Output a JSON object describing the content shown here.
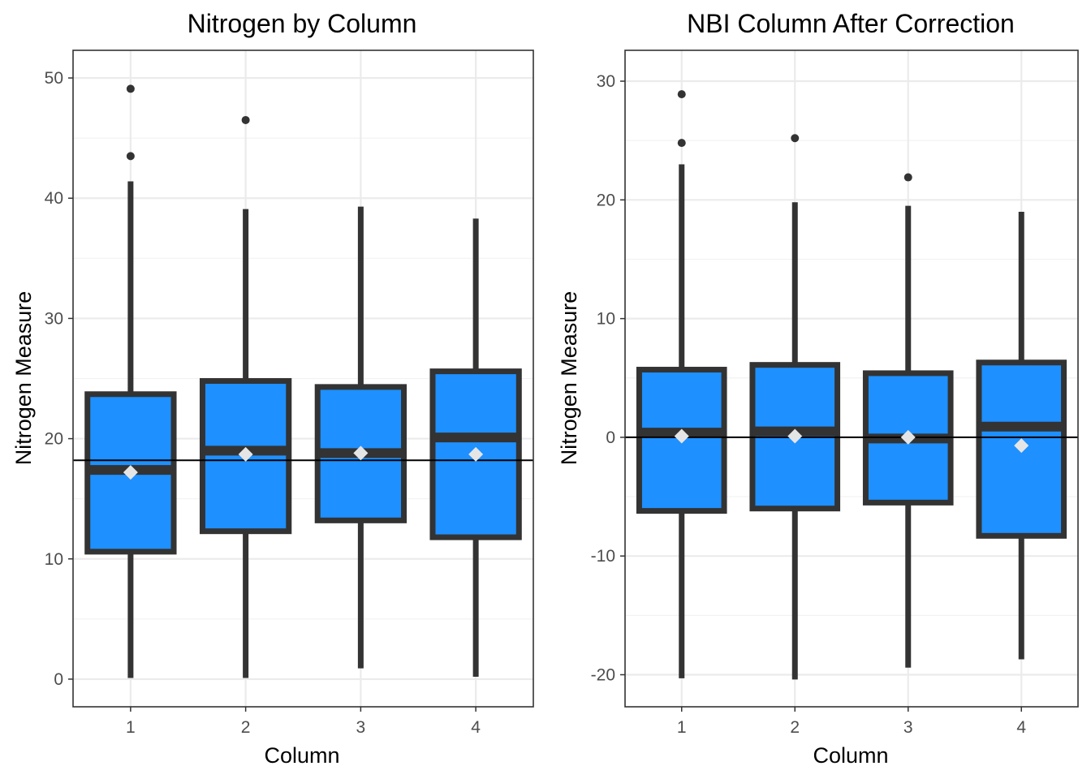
{
  "chart_data": [
    {
      "type": "boxplot",
      "title": "Nitrogen by Column",
      "xlabel": "Column",
      "ylabel": "Nitrogen Measure",
      "categories": [
        "1",
        "2",
        "3",
        "4"
      ],
      "ylim": [
        -2.3,
        52.3
      ],
      "yticks": [
        0,
        10,
        20,
        30,
        40,
        50
      ],
      "grid": true,
      "reference_line": 18.2,
      "colors": {
        "box_fill": "#1e90ff",
        "box_stroke": "#333333",
        "mean_marker": "#e5e5e5",
        "grid": "#ebebeb"
      },
      "boxes": [
        {
          "category": "1",
          "min": 0.1,
          "q1": 10.6,
          "median": 17.4,
          "q3": 23.7,
          "max": 41.4,
          "mean": 17.2,
          "outliers": [
            43.5,
            49.1
          ]
        },
        {
          "category": "2",
          "min": 0.1,
          "q1": 12.3,
          "median": 19.0,
          "q3": 24.8,
          "max": 39.1,
          "mean": 18.7,
          "outliers": [
            46.5
          ]
        },
        {
          "category": "3",
          "min": 0.9,
          "q1": 13.2,
          "median": 18.8,
          "q3": 24.3,
          "max": 39.3,
          "mean": 18.8,
          "outliers": []
        },
        {
          "category": "4",
          "min": 0.2,
          "q1": 11.8,
          "median": 20.1,
          "q3": 25.6,
          "max": 38.3,
          "mean": 18.7,
          "outliers": []
        }
      ]
    },
    {
      "type": "boxplot",
      "title": "NBI Column After Correction",
      "xlabel": "Column",
      "ylabel": "Nitrogen Measure",
      "categories": [
        "1",
        "2",
        "3",
        "4"
      ],
      "ylim": [
        -22.7,
        32.6
      ],
      "yticks": [
        -20,
        -10,
        0,
        10,
        20,
        30
      ],
      "grid": true,
      "reference_line": 0,
      "colors": {
        "box_fill": "#1e90ff",
        "box_stroke": "#333333",
        "mean_marker": "#e5e5e5",
        "grid": "#ebebeb"
      },
      "boxes": [
        {
          "category": "1",
          "min": -20.3,
          "q1": -6.2,
          "median": 0.4,
          "q3": 5.7,
          "max": 23.0,
          "mean": 0.1,
          "outliers": [
            24.8,
            28.9
          ]
        },
        {
          "category": "2",
          "min": -20.4,
          "q1": -6.0,
          "median": 0.5,
          "q3": 6.1,
          "max": 19.8,
          "mean": 0.1,
          "outliers": [
            25.2
          ]
        },
        {
          "category": "3",
          "min": -19.4,
          "q1": -5.5,
          "median": -0.1,
          "q3": 5.4,
          "max": 19.5,
          "mean": 0.0,
          "outliers": [
            21.9
          ]
        },
        {
          "category": "4",
          "min": -18.7,
          "q1": -8.3,
          "median": 0.9,
          "q3": 6.3,
          "max": 19.0,
          "mean": -0.7,
          "outliers": []
        }
      ]
    }
  ]
}
